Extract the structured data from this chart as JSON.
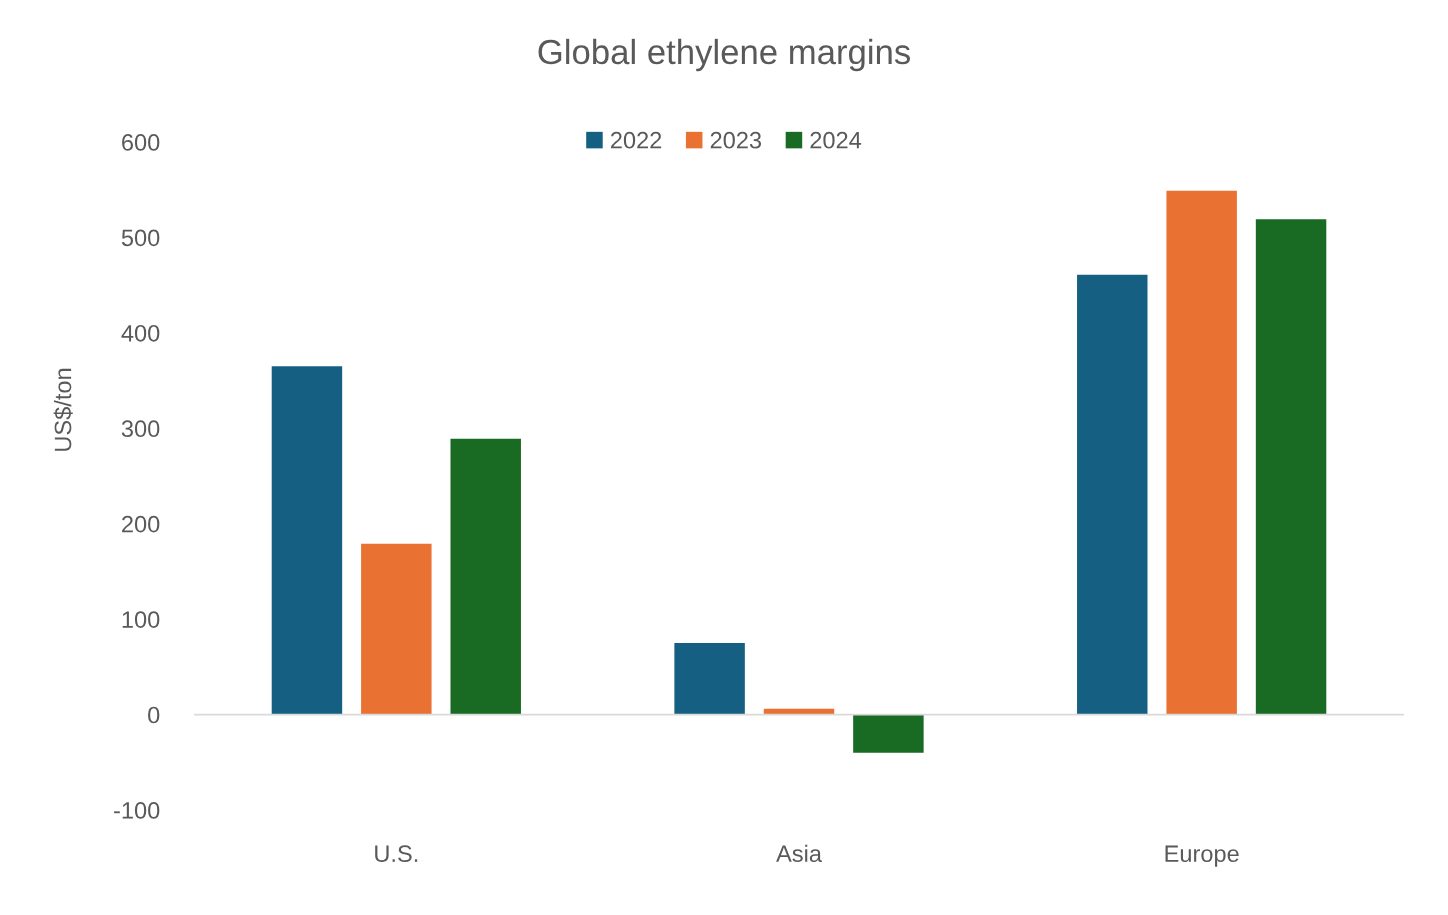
{
  "chart_data": {
    "type": "bar",
    "title": "Global ethylene margins",
    "ylabel": "US$/ton",
    "categories": [
      "U.S.",
      "Asia",
      "Europe"
    ],
    "series": [
      {
        "name": "2022",
        "color": "#156082",
        "values": [
          365,
          75,
          461
        ]
      },
      {
        "name": "2023",
        "color": "#e97132",
        "values": [
          179,
          6,
          549
        ]
      },
      {
        "name": "2024",
        "color": "#196b24",
        "values": [
          289,
          -40,
          519
        ]
      }
    ],
    "ylim": [
      -100,
      600
    ],
    "yticks": [
      -100,
      0,
      100,
      200,
      300,
      400,
      500,
      600
    ],
    "legend": "top"
  }
}
